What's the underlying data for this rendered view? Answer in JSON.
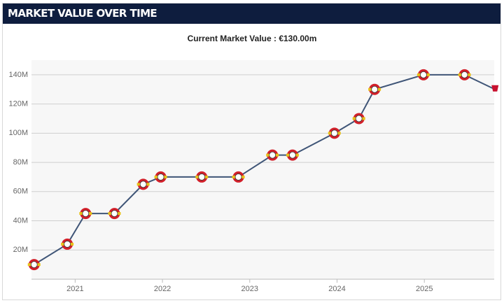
{
  "header": {
    "title": "MARKET VALUE OVER TIME"
  },
  "chart_data": {
    "type": "line",
    "title": "Current Market Value : €130.00m",
    "x": [
      2020.53,
      2020.91,
      2021.12,
      2021.45,
      2021.78,
      2021.98,
      2022.45,
      2022.87,
      2023.26,
      2023.49,
      2023.97,
      2024.25,
      2024.43,
      2024.99,
      2025.46,
      2025.81
    ],
    "series": [
      {
        "color": "#3f5577",
        "values": [
          10,
          24,
          45,
          45,
          65,
          70,
          70,
          70,
          85,
          85,
          100,
          110,
          130,
          140,
          140,
          130
        ]
      }
    ],
    "xlim": [
      2020.5,
      2025.8
    ],
    "xticks": [
      2021,
      2022,
      2023,
      2024,
      2025
    ],
    "ylim": [
      0,
      150
    ],
    "yticks": [
      {
        "value": 20,
        "label": "20M"
      },
      {
        "value": 40,
        "label": "40M"
      },
      {
        "value": 60,
        "label": "60M"
      },
      {
        "value": 80,
        "label": "80M"
      },
      {
        "value": 100,
        "label": "100M"
      },
      {
        "value": 120,
        "label": "120M"
      },
      {
        "value": 140,
        "label": "140M"
      }
    ],
    "grid": true
  }
}
